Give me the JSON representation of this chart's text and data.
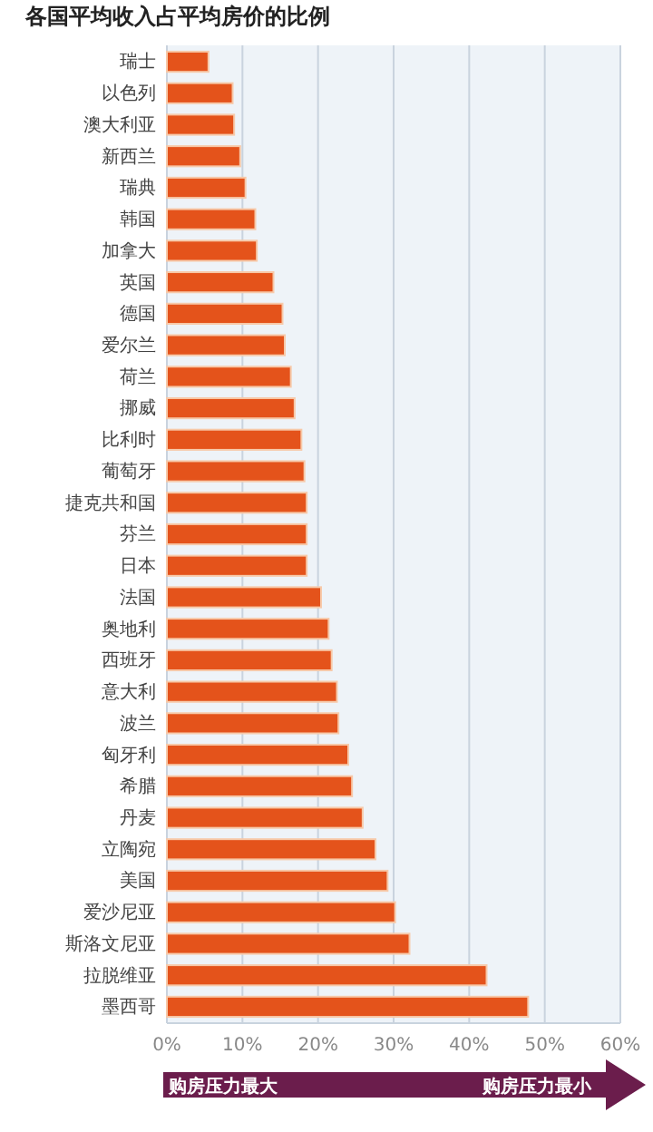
{
  "chart_data": {
    "type": "bar",
    "orientation": "horizontal",
    "title": "各国平均收入占平均房价的比例",
    "categories": [
      "瑞士",
      "以色列",
      "澳大利亚",
      "新西兰",
      "瑞典",
      "韩国",
      "加拿大",
      "英国",
      "德国",
      "爱尔兰",
      "荷兰",
      "挪威",
      "比利时",
      "葡萄牙",
      "捷克共和国",
      "芬兰",
      "日本",
      "法国",
      "奥地利",
      "西班牙",
      "意大利",
      "波兰",
      "匈牙利",
      "希腊",
      "丹麦",
      "立陶宛",
      "美国",
      "爱沙尼亚",
      "斯洛文尼亚",
      "拉脱维亚",
      "墨西哥"
    ],
    "values": [
      5.5,
      8.7,
      8.9,
      9.7,
      10.4,
      11.7,
      11.9,
      14.1,
      15.3,
      15.6,
      16.4,
      16.9,
      17.8,
      18.2,
      18.5,
      18.5,
      18.5,
      20.4,
      21.4,
      21.8,
      22.5,
      22.7,
      24.0,
      24.5,
      25.9,
      27.6,
      29.2,
      30.2,
      32.1,
      42.3,
      47.8
    ],
    "color": "#e4531b",
    "xlim": [
      0,
      60
    ],
    "xticks": [
      {
        "value": 0,
        "label": "0%"
      },
      {
        "value": 10,
        "label": "10%"
      },
      {
        "value": 20,
        "label": "20%"
      },
      {
        "value": 30,
        "label": "30%"
      },
      {
        "value": 40,
        "label": "40%"
      },
      {
        "value": 50,
        "label": "50%"
      },
      {
        "value": 60,
        "label": "60%"
      }
    ],
    "grid": "x",
    "annotations": [
      "购房压力最大",
      "购房压力最小"
    ]
  }
}
